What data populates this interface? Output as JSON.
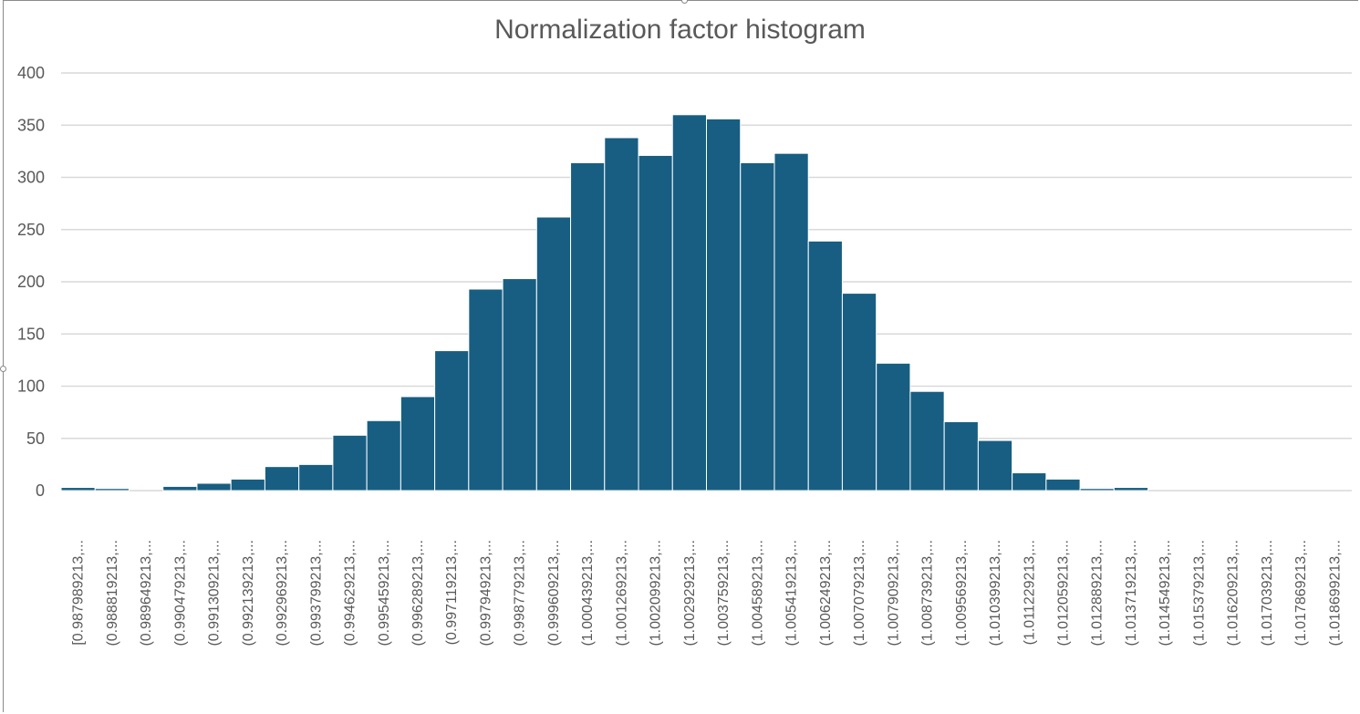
{
  "chart_data": {
    "type": "bar",
    "title": "Normalization factor histogram",
    "xlabel": "",
    "ylabel": "",
    "ylim": [
      0,
      400
    ],
    "yticks": [
      0,
      50,
      100,
      150,
      200,
      250,
      300,
      350,
      400
    ],
    "grid": true,
    "legend": "none",
    "bar_color": "#175E82",
    "categories": [
      "[0.987989213,...",
      "(0.988819213,...",
      "(0.989649213,...",
      "(0.990479213,...",
      "(0.991309213,...",
      "(0.992139213,...",
      "(0.992969213,...",
      "(0.993799213,...",
      "(0.994629213,...",
      "(0.995459213,...",
      "(0.996289213,...",
      "(0.997119213,...",
      "(0.997949213,...",
      "(0.998779213,...",
      "(0.999609213,...",
      "(1.000439213,...",
      "(1.001269213,...",
      "(1.002099213,...",
      "(1.002929213,...",
      "(1.003759213,...",
      "(1.004589213,...",
      "(1.005419213,...",
      "(1.006249213,...",
      "(1.007079213,...",
      "(1.007909213,...",
      "(1.008739213,...",
      "(1.009569213,...",
      "(1.010399213,...",
      "(1.011229213,...",
      "(1.012059213,...",
      "(1.012889213,...",
      "(1.013719213,...",
      "(1.014549213,...",
      "(1.015379213,...",
      "(1.016209213,...",
      "(1.017039213,...",
      "(1.017869213,...",
      "(1.018699213,..."
    ],
    "values": [
      3,
      2,
      0,
      4,
      7,
      11,
      23,
      25,
      53,
      67,
      90,
      134,
      193,
      203,
      262,
      314,
      338,
      321,
      360,
      356,
      314,
      323,
      239,
      189,
      122,
      95,
      66,
      48,
      17,
      11,
      2,
      3,
      0,
      0,
      0,
      0,
      0,
      0
    ]
  }
}
